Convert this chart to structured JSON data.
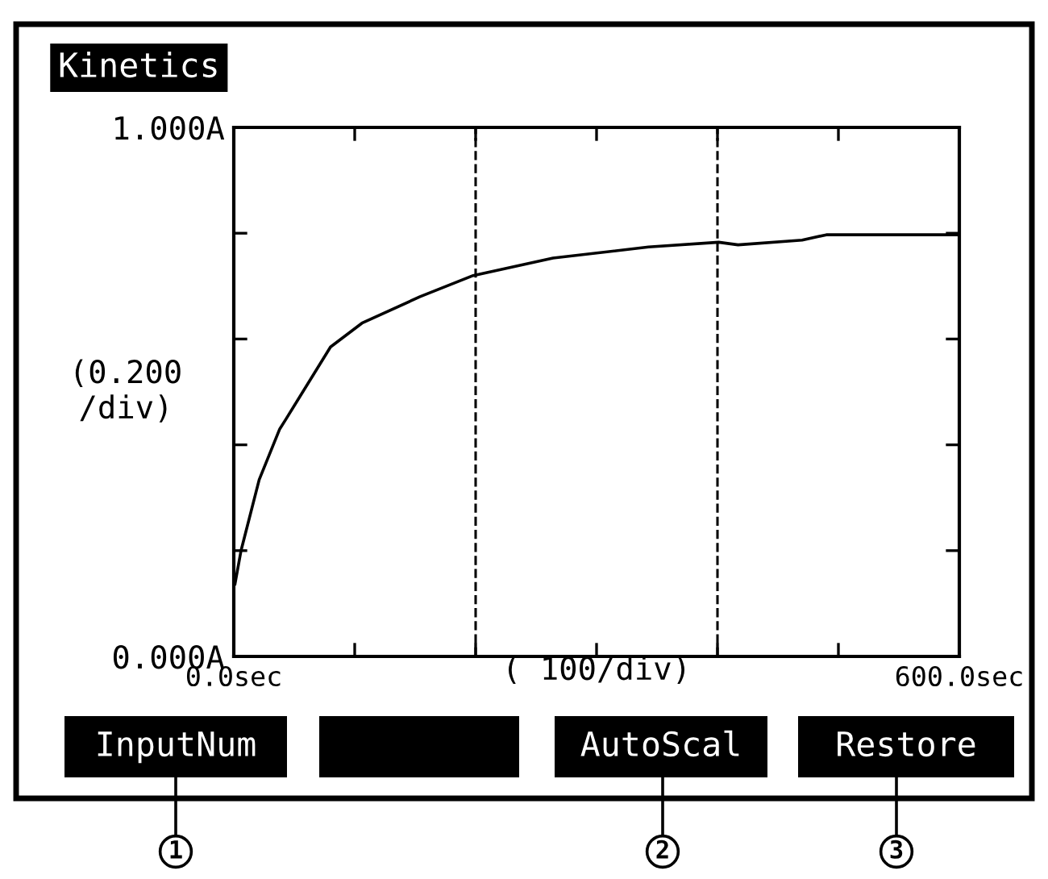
{
  "chart_data": {
    "type": "line",
    "title": "Kinetics",
    "xlabel": "( 100/div)",
    "ylabel": "(0.200\n/div)",
    "x": [
      1,
      6,
      21,
      38,
      43,
      80,
      106,
      154,
      198,
      264,
      343,
      401,
      417,
      470,
      490,
      600
    ],
    "series": [
      {
        "color": "#000000",
        "values": [
          0.137,
          0.2,
          0.334,
          0.43,
          0.448,
          0.585,
          0.63,
          0.68,
          0.72,
          0.753,
          0.774,
          0.783,
          0.778,
          0.787,
          0.797,
          0.797
        ]
      }
    ],
    "xlim": [
      0,
      600
    ],
    "ylim": [
      0,
      1
    ],
    "xticks": [
      {
        "value": 0,
        "label": "0.0sec"
      },
      {
        "value": 100,
        "label": null
      },
      {
        "value": 200,
        "label": null
      },
      {
        "value": 300,
        "label": null
      },
      {
        "value": 400,
        "label": null
      },
      {
        "value": 500,
        "label": null
      },
      {
        "value": 600,
        "label": "600.0sec"
      }
    ],
    "yticks": [
      {
        "value": 0,
        "label": "0.000A"
      },
      {
        "value": 0.2,
        "label": null
      },
      {
        "value": 0.4,
        "label": null
      },
      {
        "value": 0.6,
        "label": null
      },
      {
        "value": 0.8,
        "label": null
      },
      {
        "value": 1,
        "label": "1.000A"
      }
    ],
    "ref_lines": [
      {
        "axis": "x",
        "value": 200,
        "line_style": "dashed",
        "color": "#000000"
      },
      {
        "axis": "x",
        "value": 400,
        "line_style": "dashed",
        "color": "#000000"
      }
    ],
    "grid": false,
    "legend": false,
    "marker": "none",
    "line_style": "solid",
    "annotations": [
      "InputNum",
      "AutoScal",
      "Restore",
      "1",
      "2",
      "3"
    ]
  }
}
